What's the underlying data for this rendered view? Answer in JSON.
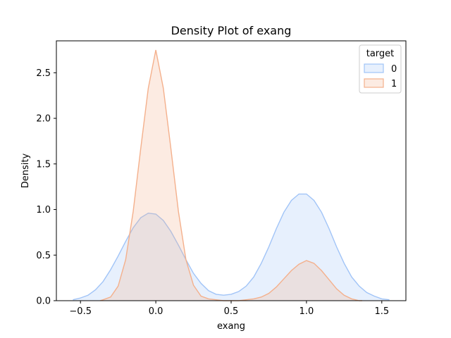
{
  "chart_data": {
    "type": "area",
    "title": "Density Plot of exang",
    "xlabel": "exang",
    "ylabel": "Density",
    "xlim": [
      -0.66,
      1.66
    ],
    "ylim": [
      0.0,
      2.85
    ],
    "xticks": [
      -0.5,
      0.0,
      0.5,
      1.0,
      1.5
    ],
    "xtick_labels": [
      "−0.5",
      "0.0",
      "0.5",
      "1.0",
      "1.5"
    ],
    "yticks": [
      0.0,
      0.5,
      1.0,
      1.5,
      2.0,
      2.5
    ],
    "ytick_labels": [
      "0.0",
      "0.5",
      "1.0",
      "1.5",
      "2.0",
      "2.5"
    ],
    "grid": false,
    "legend": {
      "title": "target",
      "placement": "top-right"
    },
    "series": [
      {
        "name": "0",
        "color": "#a1c4f7",
        "fill": "#dde9fc",
        "x": [
          -0.55,
          -0.5,
          -0.45,
          -0.4,
          -0.35,
          -0.3,
          -0.25,
          -0.2,
          -0.15,
          -0.1,
          -0.05,
          0.0,
          0.05,
          0.1,
          0.15,
          0.2,
          0.25,
          0.3,
          0.35,
          0.4,
          0.45,
          0.5,
          0.55,
          0.6,
          0.65,
          0.7,
          0.75,
          0.8,
          0.85,
          0.9,
          0.95,
          1.0,
          1.05,
          1.1,
          1.15,
          1.2,
          1.25,
          1.3,
          1.35,
          1.4,
          1.45,
          1.5,
          1.55
        ],
        "y": [
          0.01,
          0.03,
          0.06,
          0.12,
          0.21,
          0.34,
          0.49,
          0.65,
          0.8,
          0.91,
          0.96,
          0.95,
          0.88,
          0.76,
          0.61,
          0.45,
          0.3,
          0.19,
          0.11,
          0.07,
          0.06,
          0.07,
          0.1,
          0.16,
          0.26,
          0.41,
          0.59,
          0.79,
          0.97,
          1.1,
          1.17,
          1.17,
          1.1,
          0.97,
          0.79,
          0.59,
          0.41,
          0.26,
          0.16,
          0.09,
          0.05,
          0.02,
          0.01
        ]
      },
      {
        "name": "1",
        "color": "#f4b08c",
        "fill": "#f9e0d7",
        "x": [
          -0.37,
          -0.35,
          -0.3,
          -0.25,
          -0.2,
          -0.15,
          -0.1,
          -0.05,
          0.0,
          0.05,
          0.1,
          0.15,
          0.2,
          0.25,
          0.3,
          0.35,
          0.4,
          0.45,
          0.5,
          0.55,
          0.6,
          0.65,
          0.7,
          0.75,
          0.8,
          0.85,
          0.9,
          0.95,
          1.0,
          1.05,
          1.1,
          1.15,
          1.2,
          1.25,
          1.3,
          1.35,
          1.37
        ],
        "y": [
          0.0,
          0.01,
          0.04,
          0.16,
          0.45,
          0.98,
          1.67,
          2.33,
          2.75,
          2.33,
          1.67,
          0.98,
          0.45,
          0.17,
          0.05,
          0.02,
          0.01,
          0.0,
          0.0,
          0.0,
          0.01,
          0.02,
          0.04,
          0.08,
          0.15,
          0.24,
          0.33,
          0.4,
          0.44,
          0.41,
          0.33,
          0.23,
          0.13,
          0.06,
          0.02,
          0.0,
          0.0
        ]
      }
    ]
  }
}
